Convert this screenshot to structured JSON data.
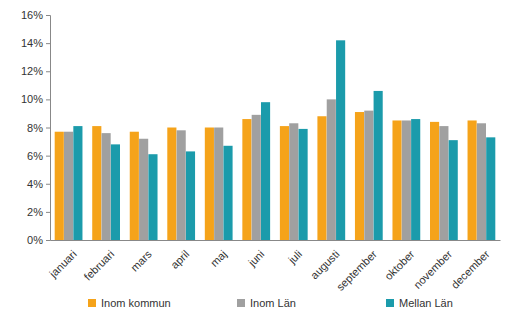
{
  "chart_data": {
    "type": "bar",
    "categories": [
      "januari",
      "februari",
      "mars",
      "april",
      "maj",
      "juni",
      "juli",
      "augusti",
      "september",
      "oktober",
      "november",
      "december"
    ],
    "series": [
      {
        "name": "Inom kommun",
        "color": "#f5a31a",
        "values": [
          7.7,
          8.1,
          7.7,
          8.0,
          8.0,
          8.6,
          8.1,
          8.8,
          9.1,
          8.5,
          8.4,
          8.5
        ]
      },
      {
        "name": "Inom Län",
        "color": "#a0a0a0",
        "values": [
          7.7,
          7.6,
          7.2,
          7.8,
          8.0,
          8.9,
          8.3,
          10.0,
          9.2,
          8.5,
          8.1,
          8.3
        ]
      },
      {
        "name": "Mellan Län",
        "color": "#1b9bab",
        "values": [
          8.1,
          6.8,
          6.1,
          6.3,
          6.7,
          9.8,
          7.9,
          14.2,
          10.6,
          8.6,
          7.1,
          7.3
        ]
      }
    ],
    "ylim": [
      0,
      16
    ],
    "yticks": [
      {
        "value": 0,
        "label": "0%"
      },
      {
        "value": 2,
        "label": "2%"
      },
      {
        "value": 4,
        "label": "4%"
      },
      {
        "value": 6,
        "label": "6%"
      },
      {
        "value": 8,
        "label": "8%"
      },
      {
        "value": 10,
        "label": "10%"
      },
      {
        "value": 12,
        "label": "12%"
      },
      {
        "value": 14,
        "label": "14%"
      },
      {
        "value": 16,
        "label": "16%"
      }
    ],
    "grid": false,
    "legend": "bottom"
  }
}
